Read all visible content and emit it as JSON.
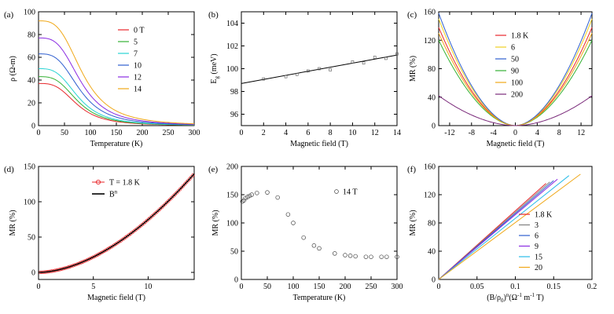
{
  "figure": {
    "panel_count": 6
  },
  "chart_data": [
    {
      "panel": "(a)",
      "type": "line",
      "xlabel": "Temperature (K)",
      "ylabel": "ρ (Ω-m)",
      "xlim": [
        0,
        300
      ],
      "ylim": [
        0,
        100
      ],
      "xticks": [
        0,
        50,
        100,
        150,
        200,
        250,
        300
      ],
      "yticks": [
        0,
        20,
        40,
        60,
        80,
        100
      ],
      "legend_position": "top-right",
      "series": [
        {
          "name": "0 T",
          "color": "#e8262a",
          "rho0": 37,
          "T0": 75
        },
        {
          "name": "5",
          "color": "#33b133",
          "rho0": 43,
          "T0": 76
        },
        {
          "name": "7",
          "color": "#28d3d3",
          "rho0": 50,
          "T0": 77
        },
        {
          "name": "10",
          "color": "#2f5fcf",
          "rho0": 63,
          "T0": 80
        },
        {
          "name": "12",
          "color": "#8a2be2",
          "rho0": 77,
          "T0": 82
        },
        {
          "name": "14",
          "color": "#f0a818",
          "rho0": 92,
          "T0": 85
        }
      ]
    },
    {
      "panel": "(b)",
      "type": "scatter",
      "xlabel": "Magnetic field (T)",
      "ylabel": "Eg (meV)",
      "xlim": [
        0,
        14
      ],
      "ylim": [
        95,
        105
      ],
      "xticks": [
        0,
        2,
        4,
        6,
        8,
        10,
        12,
        14
      ],
      "yticks": [
        96,
        98,
        100,
        102,
        104
      ],
      "x": [
        2,
        4,
        5,
        6,
        7,
        8,
        10,
        11,
        12,
        13,
        14
      ],
      "y": [
        99.1,
        99.3,
        99.5,
        99.8,
        100.0,
        99.9,
        100.6,
        100.5,
        101.0,
        100.9,
        101.3
      ],
      "fit_line": [
        [
          0,
          98.7
        ],
        [
          14,
          101.2
        ]
      ]
    },
    {
      "panel": "(c)",
      "type": "line",
      "xlabel": "Magnetic field (T)",
      "ylabel": "MR (%)",
      "xlim": [
        -14,
        14
      ],
      "ylim": [
        0,
        160
      ],
      "xticks": [
        -12,
        -8,
        -4,
        0,
        4,
        8,
        12
      ],
      "yticks": [
        0,
        40,
        80,
        120,
        160
      ],
      "legend_position": "top-right",
      "series": [
        {
          "name": "1.8 K",
          "color": "#e8262a",
          "mr_at_14T": 138
        },
        {
          "name": "6",
          "color": "#f0d020",
          "mr_at_14T": 150
        },
        {
          "name": "50",
          "color": "#2f5fcf",
          "mr_at_14T": 158
        },
        {
          "name": "90",
          "color": "#33b133",
          "mr_at_14T": 120
        },
        {
          "name": "100",
          "color": "#f0a818",
          "mr_at_14T": 130
        },
        {
          "name": "200",
          "color": "#7a2a7a",
          "mr_at_14T": 42
        }
      ]
    },
    {
      "panel": "(d)",
      "type": "scatter",
      "xlabel": "Magnetic field (T)",
      "ylabel": "MR (%)",
      "xlim": [
        0,
        14.2
      ],
      "ylim": [
        -10,
        150
      ],
      "xticks": [
        0,
        5,
        10
      ],
      "yticks": [
        0,
        50,
        100,
        150
      ],
      "legend_position": "top-center",
      "series": [
        {
          "name": "T = 1.8 K",
          "color": "#e8262a",
          "kind": "markers",
          "mr_at_14T": 136,
          "exponent": 1.78
        },
        {
          "name": "B",
          "name_sup": "n",
          "color": "#000000",
          "kind": "line",
          "mr_at_14T": 136,
          "exponent": 1.78
        }
      ]
    },
    {
      "panel": "(e)",
      "type": "scatter",
      "xlabel": "Temperature (K)",
      "ylabel": "MR (%)",
      "xlim": [
        0,
        300
      ],
      "ylim": [
        0,
        200
      ],
      "xticks": [
        0,
        50,
        100,
        150,
        200,
        250,
        300
      ],
      "yticks": [
        0,
        50,
        100,
        150,
        200
      ],
      "annotation": "14 T",
      "x": [
        2,
        5,
        8,
        12,
        16,
        20,
        30,
        50,
        70,
        90,
        100,
        120,
        140,
        150,
        180,
        200,
        210,
        220,
        240,
        250,
        270,
        280,
        300
      ],
      "y": [
        138,
        140,
        144,
        146,
        148,
        150,
        153,
        154,
        145,
        115,
        100,
        74,
        60,
        55,
        46,
        43,
        42,
        41,
        40,
        40,
        40,
        40,
        40
      ]
    },
    {
      "panel": "(f)",
      "type": "line",
      "xlabel": "(B/ρ0)^n (Ω^-1 m^-1 T)",
      "ylabel": "MR (%)",
      "xlim": [
        0,
        0.2
      ],
      "ylim": [
        0,
        160
      ],
      "xticks": [
        0,
        0.05,
        0.1,
        0.15,
        0.2
      ],
      "yticks": [
        0,
        40,
        80,
        120,
        160
      ],
      "legend_position": "bottom-right",
      "series": [
        {
          "name": "1.8 K",
          "color": "#e8262a",
          "x_end": 0.14,
          "y_end": 136
        },
        {
          "name": "3",
          "color": "#808080",
          "x_end": 0.145,
          "y_end": 138
        },
        {
          "name": "6",
          "color": "#2f5fcf",
          "x_end": 0.15,
          "y_end": 140
        },
        {
          "name": "9",
          "color": "#8a2be2",
          "x_end": 0.155,
          "y_end": 142
        },
        {
          "name": "15",
          "color": "#28bce8",
          "x_end": 0.17,
          "y_end": 147
        },
        {
          "name": "20",
          "color": "#f0a818",
          "x_end": 0.185,
          "y_end": 149
        }
      ]
    }
  ]
}
